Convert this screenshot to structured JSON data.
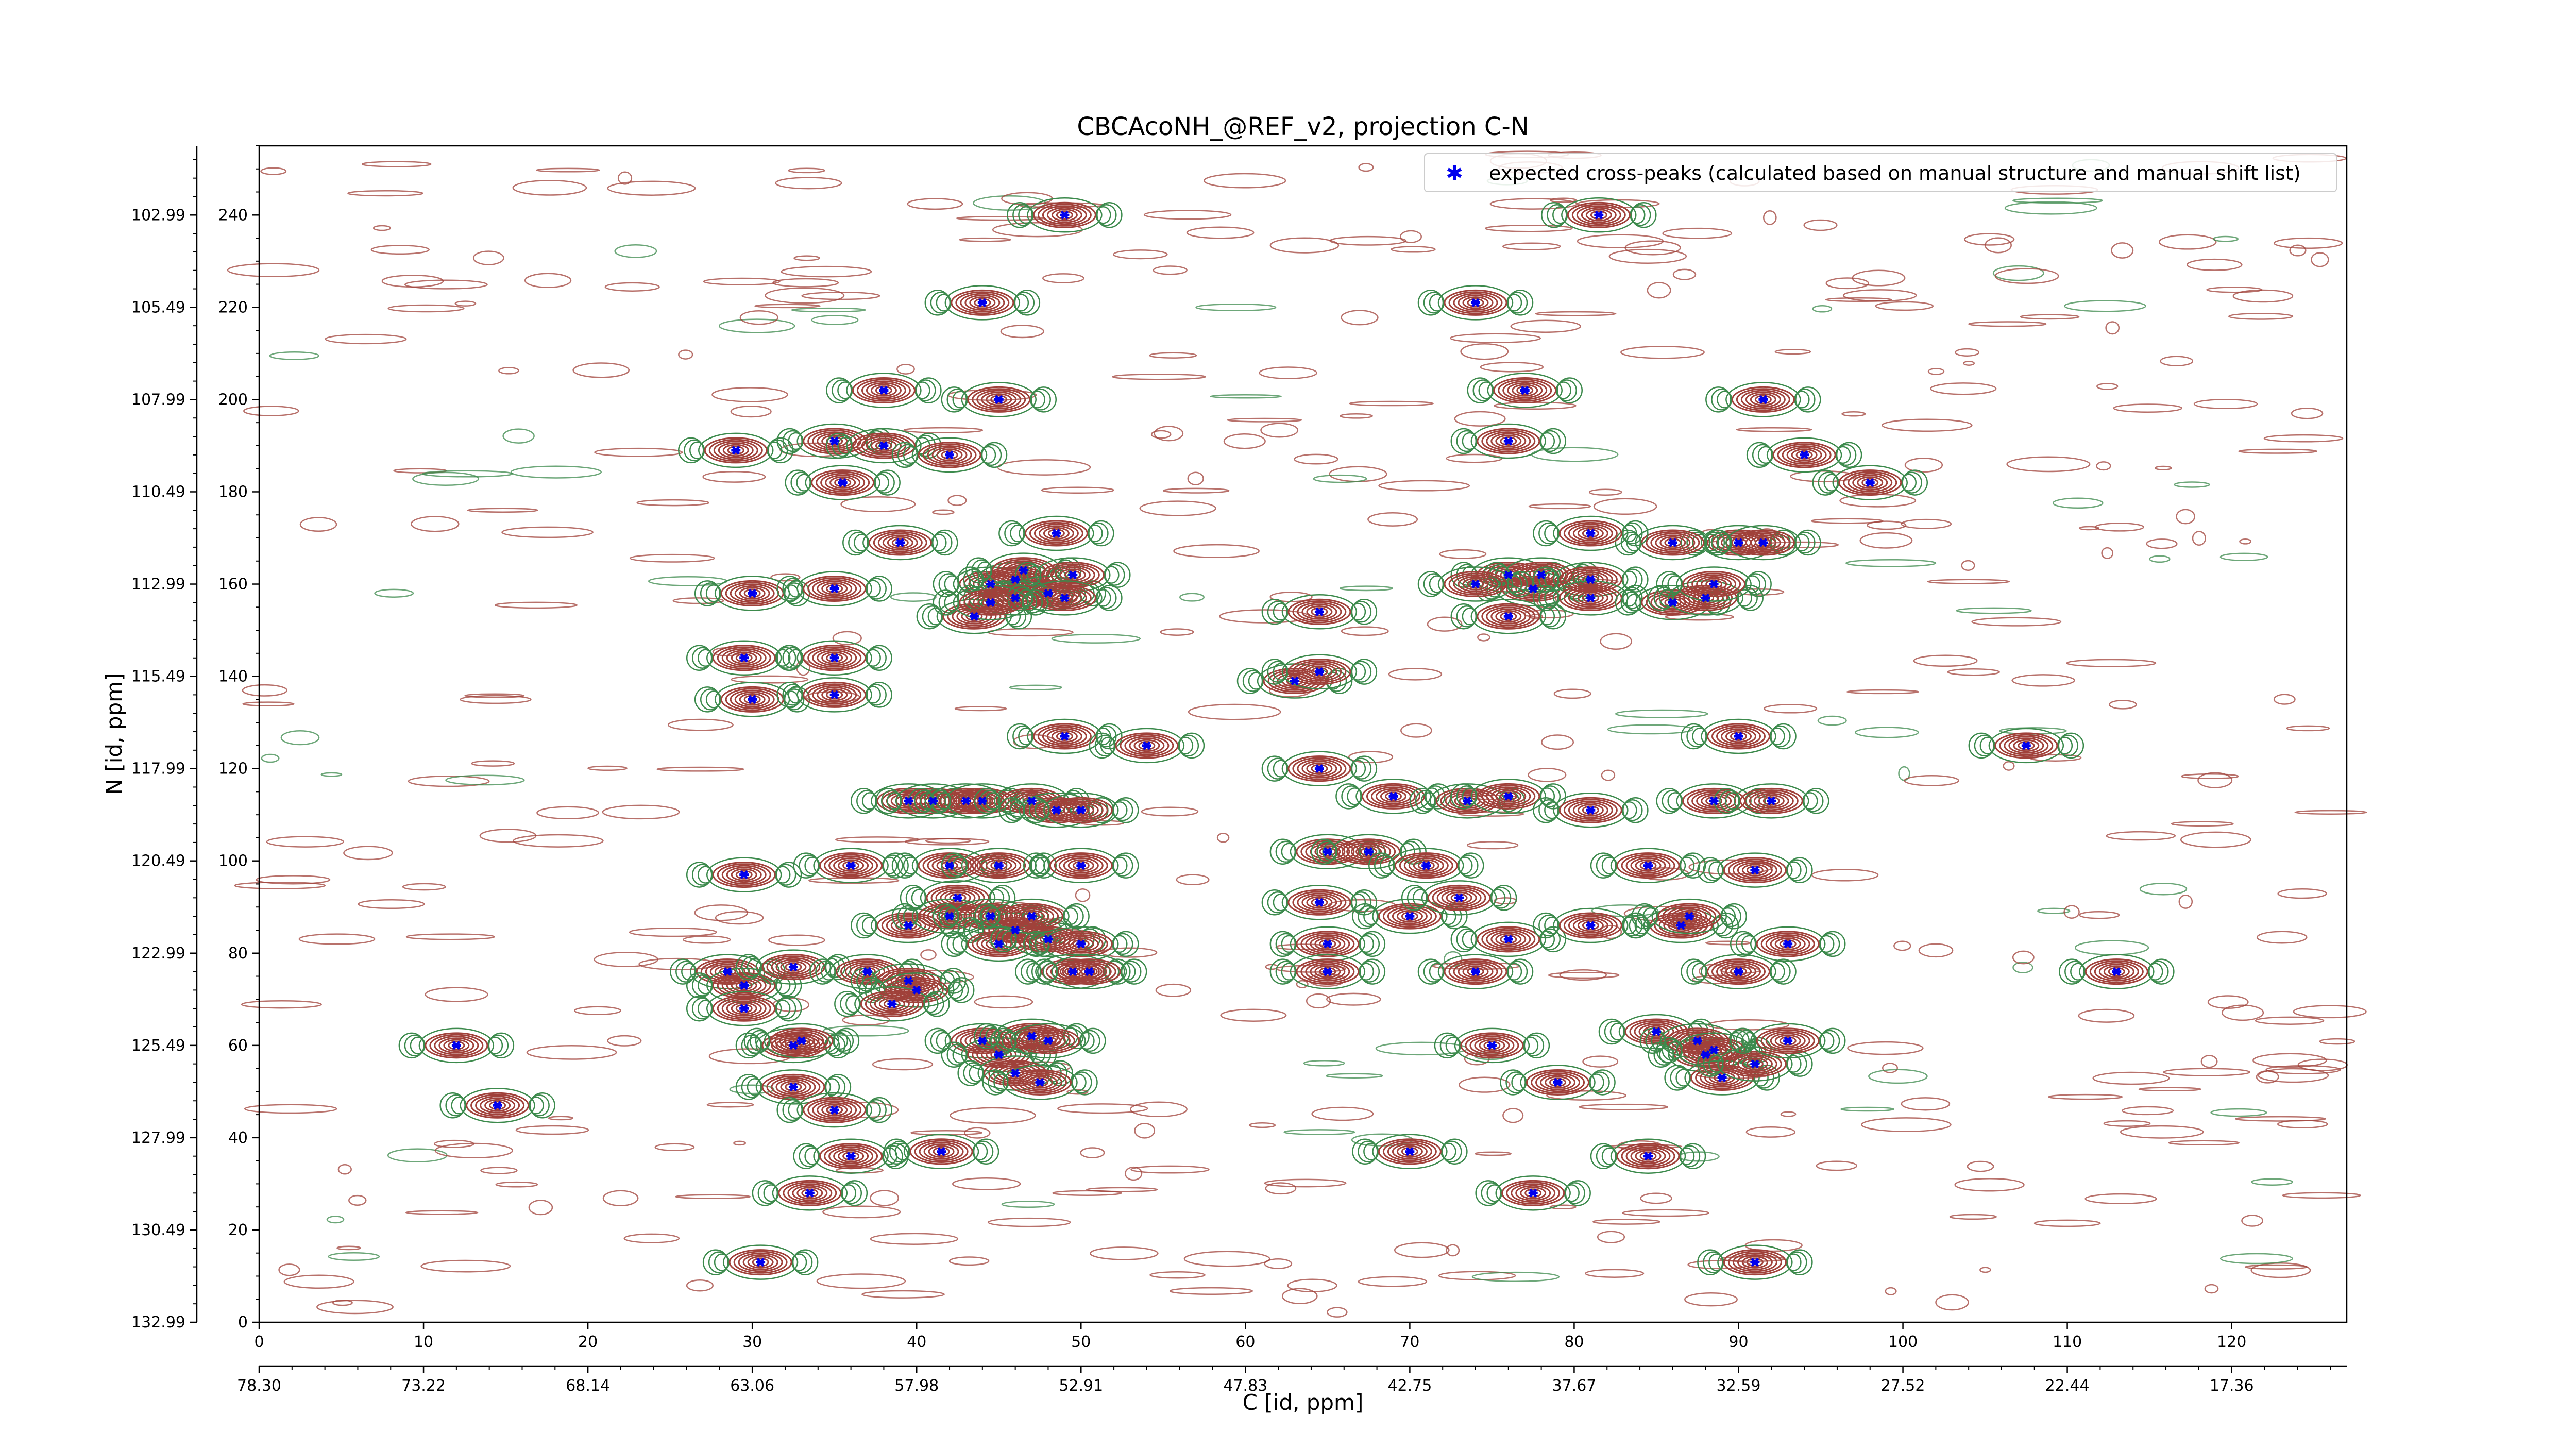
{
  "chart_data": {
    "type": "scatter",
    "title": "CBCAcoNH_@REF_v2, projection C-N",
    "xlabel": "C [id, ppm]",
    "ylabel": "N [id, ppm]",
    "xlim": [
      0,
      127
    ],
    "ylim": [
      0,
      255
    ],
    "x_ticks": [
      0,
      10,
      20,
      30,
      40,
      50,
      60,
      70,
      80,
      90,
      100,
      110,
      120
    ],
    "y_ticks": [
      0,
      20,
      40,
      60,
      80,
      100,
      120,
      140,
      160,
      180,
      200,
      220,
      240
    ],
    "x_ppm_tick_labels": [
      "78.30",
      "73.22",
      "68.14",
      "63.06",
      "57.98",
      "52.91",
      "47.83",
      "42.75",
      "37.67",
      "32.59",
      "27.52",
      "22.44",
      "17.36"
    ],
    "y_ppm_tick_labels": [
      "132.99",
      "130.49",
      "127.99",
      "125.49",
      "122.99",
      "120.49",
      "117.99",
      "115.49",
      "112.99",
      "110.49",
      "107.99",
      "105.49",
      "102.99"
    ],
    "legend": {
      "placement": "top-right",
      "label": "expected cross-peaks (calculated based on manual structure and manual shift list)"
    },
    "colors": {
      "marker": "#0000ee",
      "contour_positive": "#a0413a",
      "contour_negative": "#3c8a4c"
    },
    "series": [
      {
        "name": "expected cross-peaks (calculated based on manual structure and manual shift list)",
        "points": [
          [
            49,
            240
          ],
          [
            81.5,
            240
          ],
          [
            44,
            221
          ],
          [
            74,
            221
          ],
          [
            38,
            202
          ],
          [
            45,
            200
          ],
          [
            77,
            202
          ],
          [
            91.5,
            200
          ],
          [
            29,
            189
          ],
          [
            35,
            191
          ],
          [
            38,
            190
          ],
          [
            42,
            188
          ],
          [
            76,
            191
          ],
          [
            94,
            188
          ],
          [
            98,
            182
          ],
          [
            35.5,
            182
          ],
          [
            39,
            169
          ],
          [
            90,
            169
          ],
          [
            91.5,
            169
          ],
          [
            86,
            169
          ],
          [
            48.5,
            171
          ],
          [
            81,
            171
          ],
          [
            30,
            158
          ],
          [
            35,
            159
          ],
          [
            44.5,
            160
          ],
          [
            46,
            161
          ],
          [
            46.5,
            163
          ],
          [
            48,
            158
          ],
          [
            49.5,
            162
          ],
          [
            43.5,
            153
          ],
          [
            46,
            157
          ],
          [
            49,
            157
          ],
          [
            44.5,
            156
          ],
          [
            76,
            162
          ],
          [
            77.5,
            159
          ],
          [
            78,
            162
          ],
          [
            76,
            153
          ],
          [
            81,
            161
          ],
          [
            81,
            157
          ],
          [
            74,
            160
          ],
          [
            86,
            156
          ],
          [
            88,
            157
          ],
          [
            88.5,
            160
          ],
          [
            64.5,
            154
          ],
          [
            29.5,
            144
          ],
          [
            35,
            144
          ],
          [
            30,
            135
          ],
          [
            35,
            136
          ],
          [
            63,
            139
          ],
          [
            64.5,
            141
          ],
          [
            49,
            127
          ],
          [
            54,
            125
          ],
          [
            90,
            127
          ],
          [
            107.5,
            125
          ],
          [
            64.5,
            120
          ],
          [
            39.5,
            113
          ],
          [
            41,
            113
          ],
          [
            43,
            113
          ],
          [
            44,
            113
          ],
          [
            47,
            113
          ],
          [
            48.5,
            111
          ],
          [
            50,
            111
          ],
          [
            69,
            114
          ],
          [
            73.5,
            113
          ],
          [
            76,
            114
          ],
          [
            81,
            111
          ],
          [
            88.5,
            113
          ],
          [
            92,
            113
          ],
          [
            29.5,
            97
          ],
          [
            36,
            99
          ],
          [
            42,
            99
          ],
          [
            45,
            99
          ],
          [
            50,
            99
          ],
          [
            65,
            102
          ],
          [
            67.5,
            102
          ],
          [
            71,
            99
          ],
          [
            84.5,
            99
          ],
          [
            91,
            98
          ],
          [
            39.5,
            86
          ],
          [
            42.5,
            92
          ],
          [
            42,
            88
          ],
          [
            44.5,
            88
          ],
          [
            46,
            85
          ],
          [
            45,
            82
          ],
          [
            48,
            83
          ],
          [
            47,
            88
          ],
          [
            50,
            82
          ],
          [
            64.5,
            91
          ],
          [
            70,
            88
          ],
          [
            73,
            92
          ],
          [
            65,
            82
          ],
          [
            76,
            83
          ],
          [
            81,
            86
          ],
          [
            86.5,
            86
          ],
          [
            87,
            88
          ],
          [
            93,
            82
          ],
          [
            28.5,
            76
          ],
          [
            29.5,
            73
          ],
          [
            32.5,
            77
          ],
          [
            37,
            76
          ],
          [
            39.5,
            74
          ],
          [
            40,
            72
          ],
          [
            38.5,
            69
          ],
          [
            29.5,
            68
          ],
          [
            49.5,
            76
          ],
          [
            50.5,
            76
          ],
          [
            65,
            76
          ],
          [
            74,
            76
          ],
          [
            90,
            76
          ],
          [
            113,
            76
          ],
          [
            32.5,
            60
          ],
          [
            33,
            61
          ],
          [
            44,
            61
          ],
          [
            45,
            58
          ],
          [
            47,
            62
          ],
          [
            48,
            61
          ],
          [
            46,
            54
          ],
          [
            47.5,
            52
          ],
          [
            32.5,
            51
          ],
          [
            35,
            46
          ],
          [
            12,
            60
          ],
          [
            14.5,
            47
          ],
          [
            75,
            60
          ],
          [
            79,
            52
          ],
          [
            85,
            63
          ],
          [
            88,
            58
          ],
          [
            87.5,
            61
          ],
          [
            88.5,
            59
          ],
          [
            89,
            53
          ],
          [
            91,
            56
          ],
          [
            93,
            61
          ],
          [
            36,
            36
          ],
          [
            41.5,
            37
          ],
          [
            70,
            37
          ],
          [
            84.5,
            36
          ],
          [
            77.5,
            28
          ],
          [
            33.5,
            28
          ],
          [
            30.5,
            13
          ],
          [
            91,
            13
          ]
        ]
      }
    ]
  }
}
